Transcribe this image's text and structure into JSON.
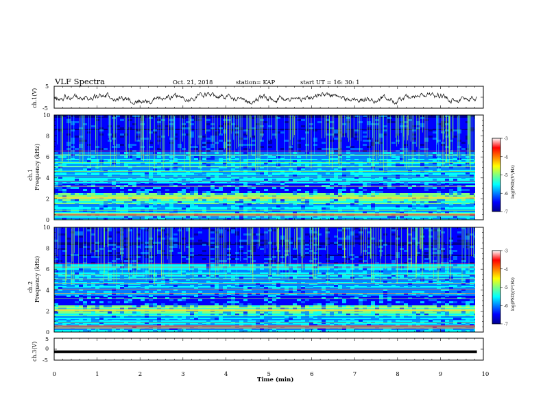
{
  "header": {
    "title": "VLF Spectra",
    "date": "Oct. 21, 2018",
    "station": "station= KAP",
    "start": "start  UT =   16: 30: 1"
  },
  "chart_data": [
    {
      "type": "line",
      "panel": "ch1-waveform",
      "ylabel": "ch.1(V)",
      "ylim": [
        -5,
        5
      ],
      "yticks": [
        "5",
        "-5"
      ],
      "x_range_min": [
        0,
        9.85
      ],
      "description_values": "noisy waveform fluctuating roughly between -3 and +2 V",
      "series": [
        {
          "values_min_max": [
            -3.2,
            2.1
          ]
        }
      ]
    },
    {
      "type": "heatmap",
      "panel": "ch1-spectrogram",
      "ylabel": [
        "ch.1",
        "Frequency (kHz)"
      ],
      "ylim": [
        0,
        10
      ],
      "yticks": [
        "0",
        "2",
        "4",
        "6",
        "8",
        "10"
      ],
      "xlim_min": [
        0,
        10
      ],
      "data_extent_min": [
        0,
        9.85
      ],
      "colorbar": {
        "label": "log(PSD)(V²/Hz)",
        "range": [
          -7,
          -3
        ],
        "ticks": [
          "-3",
          "-4",
          "-5",
          "-6",
          "-7"
        ],
        "colormap": "jet"
      }
    },
    {
      "type": "heatmap",
      "panel": "ch2-spectrogram",
      "ylabel": [
        "ch.2",
        "Frequency (kHz)"
      ],
      "ylim": [
        0,
        10
      ],
      "yticks": [
        "0",
        "2",
        "4",
        "6",
        "8",
        "10"
      ],
      "xlim_min": [
        0,
        10
      ],
      "data_extent_min": [
        0,
        9.85
      ],
      "colorbar": {
        "label": "log(PSD)(V²/Hz)",
        "range": [
          -7,
          -3
        ],
        "ticks": [
          "-3",
          "-4",
          "-5",
          "-6",
          "-7"
        ],
        "colormap": "jet"
      }
    },
    {
      "type": "line",
      "panel": "ch3-waveform",
      "ylabel": "ch.3(V)",
      "ylim": [
        -5,
        5
      ],
      "yticks": [
        "5",
        "0",
        "-5"
      ],
      "series": [
        {
          "x": [
            0,
            9.85
          ],
          "values": [
            -1.2,
            -1.2
          ]
        }
      ],
      "xlabel": "Time  (min)",
      "xlim": [
        0,
        10
      ],
      "xticks": [
        "0",
        "1",
        "2",
        "3",
        "4",
        "5",
        "6",
        "7",
        "8",
        "9",
        "10"
      ]
    }
  ],
  "colors": {
    "axis": "#000000",
    "jet": [
      "#00008f",
      "#0000ff",
      "#0080ff",
      "#00ffff",
      "#80ff80",
      "#ffff00",
      "#ff8000",
      "#ff0000",
      "#800000"
    ]
  }
}
